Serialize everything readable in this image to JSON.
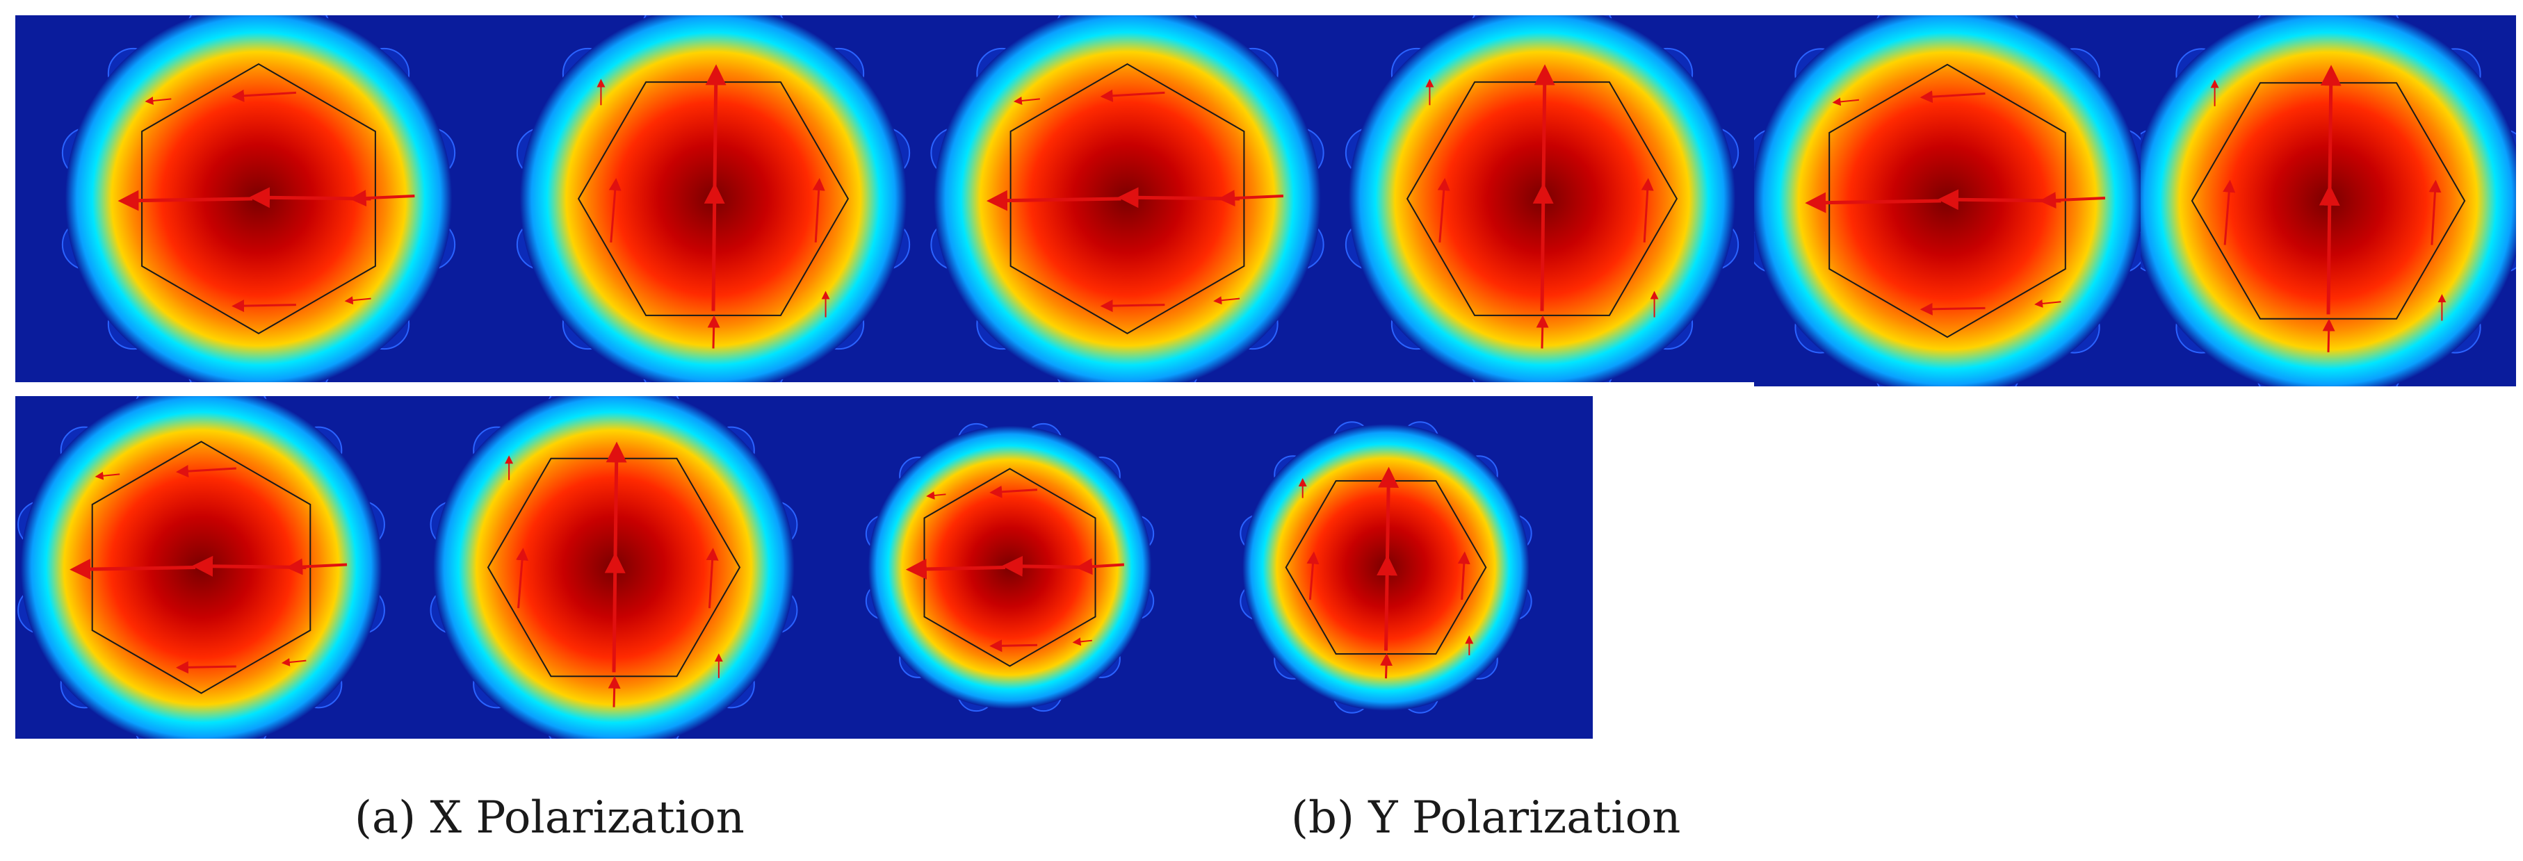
{
  "figure": {
    "captions": [
      {
        "id": "cap-a",
        "text": "(a) X Polarization"
      },
      {
        "id": "cap-b",
        "text": "(b) Y Polarization"
      }
    ],
    "palette": {
      "background": "#0a1c9c",
      "field_core": "#7a0000",
      "field_mid": "#ff2a00",
      "field_edge": "#ffd400",
      "field_outer": "#00e6ff",
      "arrow": "#e01010",
      "hexagon": "#1a1a1a"
    },
    "panels": [
      {
        "row": 1,
        "index": 1,
        "polarization": "x"
      },
      {
        "row": 1,
        "index": 2,
        "polarization": "y"
      },
      {
        "row": 1,
        "index": 3,
        "polarization": "x"
      },
      {
        "row": 1,
        "index": 4,
        "polarization": "y"
      },
      {
        "row": 1,
        "index": 5,
        "polarization": "x"
      },
      {
        "row": 1,
        "index": 6,
        "polarization": "y"
      },
      {
        "row": 2,
        "index": 1,
        "polarization": "x"
      },
      {
        "row": 2,
        "index": 2,
        "polarization": "y"
      },
      {
        "row": 2,
        "index": 3,
        "polarization": "x"
      },
      {
        "row": 2,
        "index": 4,
        "polarization": "y"
      }
    ]
  }
}
